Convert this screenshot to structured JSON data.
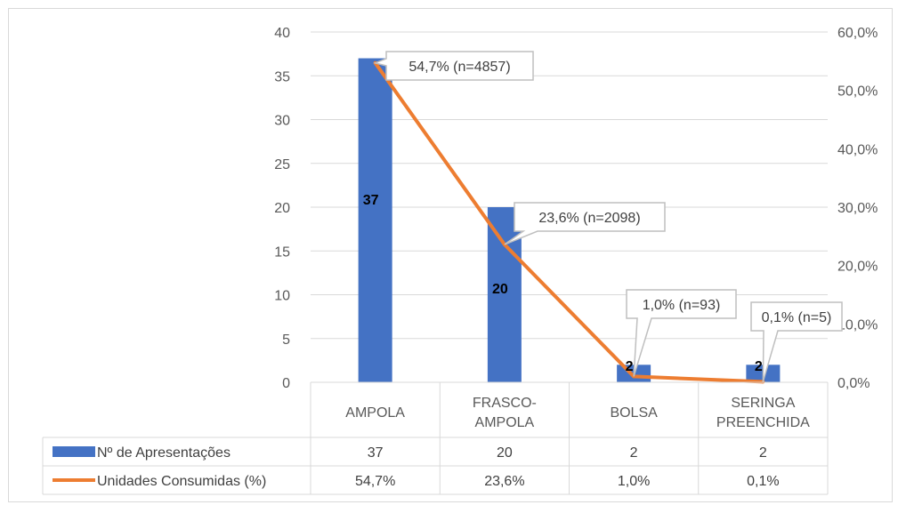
{
  "colors": {
    "bar": "#4472C4",
    "line": "#ED7D31",
    "grid": "#d9d9d9",
    "text": "#595959"
  },
  "chart_data": {
    "type": "bar",
    "categories": [
      [
        "AMPOLA"
      ],
      [
        "FRASCO-",
        "AMPOLA"
      ],
      [
        "BOLSA"
      ],
      [
        "SERINGA",
        "PREENCHIDA"
      ]
    ],
    "series": [
      {
        "name": "Nº de Apresentações",
        "kind": "bar",
        "axis": "left",
        "values": [
          37,
          20,
          2,
          2
        ],
        "data_labels": [
          "37",
          "20",
          "2",
          "2"
        ]
      },
      {
        "name": "Unidades Consumidas (%)",
        "kind": "line",
        "axis": "right",
        "values": [
          54.7,
          23.6,
          1.0,
          0.1
        ],
        "callouts": [
          "54,7% (n=4857)",
          "23,6% (n=2098)",
          "1,0% (n=93)",
          "0,1% (n=5)"
        ]
      }
    ],
    "left_axis": {
      "min": 0,
      "max": 40,
      "step": 5,
      "ticks": [
        "0",
        "5",
        "10",
        "15",
        "20",
        "25",
        "30",
        "35",
        "40"
      ]
    },
    "right_axis": {
      "min": 0,
      "max": 60,
      "step": 10,
      "ticks": [
        "0,0%",
        "10,0%",
        "20,0%",
        "30,0%",
        "40,0%",
        "50,0%",
        "60,0%"
      ]
    },
    "data_table": {
      "rows": [
        {
          "label": "Nº de Apresentações",
          "cells": [
            "37",
            "20",
            "2",
            "2"
          ]
        },
        {
          "label": "Unidades Consumidas (%)",
          "cells": [
            "54,7%",
            "23,6%",
            "1,0%",
            "0,1%"
          ]
        }
      ]
    },
    "grid": true
  }
}
